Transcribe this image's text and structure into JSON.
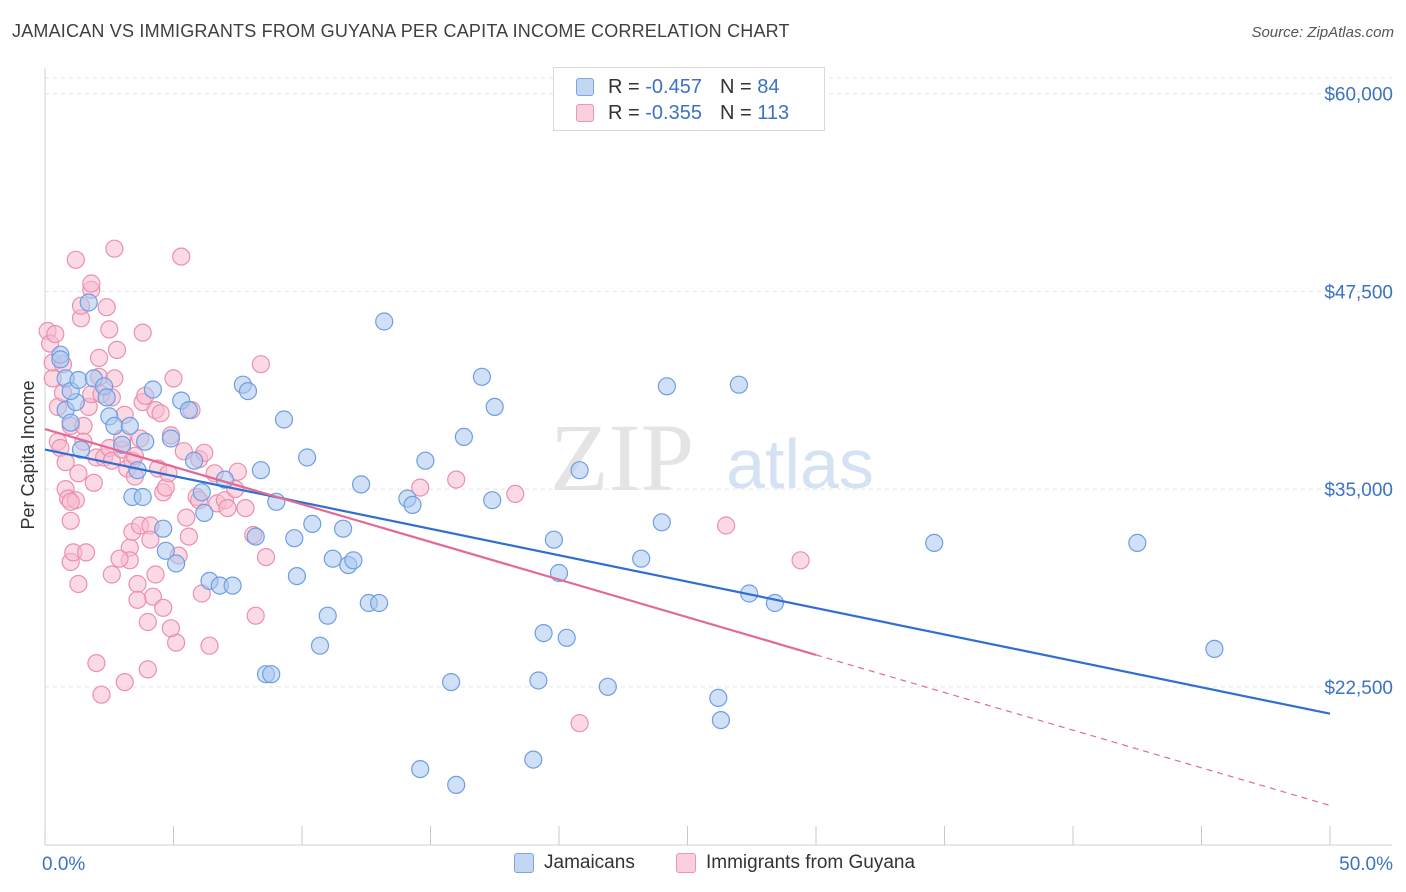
{
  "header": {
    "title": "JAMAICAN VS IMMIGRANTS FROM GUYANA PER CAPITA INCOME CORRELATION CHART",
    "source": "Source: ZipAtlas.com"
  },
  "watermark": {
    "zip": "ZIP",
    "atlas": "atlas"
  },
  "colors": {
    "blue_fill": "#aac8f0",
    "blue_stroke": "#6f9ee0",
    "blue_line": "#2f6fd0",
    "pink_fill": "#f7bcd0",
    "pink_stroke": "#eb8fb0",
    "pink_line": "#e26a95",
    "tick_text": "#3b73c4",
    "grid": "#e3e3e3"
  },
  "legend": {
    "rows": [
      {
        "r_label": "R =",
        "r_value": "-0.457",
        "n_label": "N =",
        "n_value": "84"
      },
      {
        "r_label": "R =",
        "r_value": "-0.355",
        "n_label": "N =",
        "n_value": "113"
      }
    ]
  },
  "bottom_legend": {
    "items": [
      "Jamaicans",
      "Immigrants from Guyana"
    ]
  },
  "chart_data": {
    "type": "scatter",
    "ylabel": "Per Capita Income",
    "xlim": [
      0,
      50
    ],
    "ylim": [
      12500,
      61500
    ],
    "x_tick_labels": [
      "0.0%",
      "50.0%"
    ],
    "y_ticks": [
      22500,
      35000,
      47500,
      60000
    ],
    "y_tick_labels": [
      "$22,500",
      "$35,000",
      "$47,500",
      "$60,000"
    ],
    "grid": true,
    "series": [
      {
        "name": "Jamaicans",
        "r": -0.457,
        "n": 84,
        "trend": {
          "x0": 0,
          "y0": 37500,
          "x1": 50,
          "y1": 20800,
          "dashed_from": null
        },
        "points": [
          [
            0.6,
            43.5
          ],
          [
            0.6,
            43.2
          ],
          [
            0.8,
            42.0
          ],
          [
            0.8,
            40.0
          ],
          [
            1.0,
            39.2
          ],
          [
            1.2,
            40.5
          ],
          [
            1.0,
            41.2
          ],
          [
            1.3,
            41.9
          ],
          [
            1.4,
            37.5
          ],
          [
            1.7,
            46.8
          ],
          [
            1.9,
            42.0
          ],
          [
            2.3,
            41.5
          ],
          [
            2.4,
            40.8
          ],
          [
            2.5,
            39.6
          ],
          [
            2.7,
            39.0
          ],
          [
            3.0,
            37.8
          ],
          [
            3.3,
            39.0
          ],
          [
            3.4,
            34.5
          ],
          [
            3.6,
            36.2
          ],
          [
            3.8,
            34.5
          ],
          [
            3.9,
            38.0
          ],
          [
            4.2,
            41.3
          ],
          [
            4.6,
            32.5
          ],
          [
            4.7,
            31.1
          ],
          [
            4.9,
            38.2
          ],
          [
            5.1,
            30.3
          ],
          [
            5.3,
            40.6
          ],
          [
            5.6,
            40.0
          ],
          [
            5.8,
            36.8
          ],
          [
            6.1,
            34.8
          ],
          [
            6.2,
            33.5
          ],
          [
            6.4,
            29.2
          ],
          [
            6.8,
            28.9
          ],
          [
            7.0,
            35.6
          ],
          [
            7.3,
            28.9
          ],
          [
            7.7,
            41.6
          ],
          [
            7.9,
            41.2
          ],
          [
            8.2,
            32.0
          ],
          [
            8.4,
            36.2
          ],
          [
            8.6,
            23.3
          ],
          [
            8.8,
            23.3
          ],
          [
            9.0,
            34.2
          ],
          [
            9.3,
            39.4
          ],
          [
            9.7,
            31.9
          ],
          [
            9.8,
            29.5
          ],
          [
            10.2,
            37.0
          ],
          [
            10.4,
            32.8
          ],
          [
            10.7,
            25.1
          ],
          [
            11.0,
            27.0
          ],
          [
            11.2,
            30.6
          ],
          [
            11.6,
            32.5
          ],
          [
            11.8,
            30.2
          ],
          [
            12.0,
            30.5
          ],
          [
            12.3,
            35.3
          ],
          [
            12.6,
            27.8
          ],
          [
            13.0,
            27.8
          ],
          [
            13.2,
            45.6
          ],
          [
            14.1,
            34.4
          ],
          [
            14.3,
            34.0
          ],
          [
            14.6,
            17.3
          ],
          [
            14.8,
            36.8
          ],
          [
            15.8,
            22.8
          ],
          [
            16.0,
            16.3
          ],
          [
            16.3,
            38.3
          ],
          [
            17.0,
            42.1
          ],
          [
            17.4,
            34.3
          ],
          [
            17.5,
            40.2
          ],
          [
            19.0,
            17.9
          ],
          [
            19.2,
            22.9
          ],
          [
            19.4,
            25.9
          ],
          [
            19.8,
            31.8
          ],
          [
            20.0,
            29.7
          ],
          [
            20.3,
            25.6
          ],
          [
            20.8,
            36.2
          ],
          [
            21.9,
            22.5
          ],
          [
            23.2,
            30.6
          ],
          [
            24.0,
            32.9
          ],
          [
            24.2,
            41.5
          ],
          [
            26.2,
            21.8
          ],
          [
            26.3,
            20.4
          ],
          [
            27.0,
            41.6
          ],
          [
            27.4,
            28.4
          ],
          [
            28.4,
            27.8
          ],
          [
            34.6,
            31.6
          ],
          [
            42.5,
            31.6
          ],
          [
            45.5,
            24.9
          ]
        ]
      },
      {
        "name": "Immigrants from Guyana",
        "r": -0.355,
        "n": 113,
        "trend": {
          "x0": 0,
          "y0": 38800,
          "x1": 50,
          "y1": 15000,
          "dashed_from": 30
        },
        "points": [
          [
            0.1,
            45.0
          ],
          [
            0.2,
            44.2
          ],
          [
            0.3,
            43.0
          ],
          [
            0.3,
            42.0
          ],
          [
            0.4,
            44.8
          ],
          [
            0.5,
            40.2
          ],
          [
            0.5,
            38.0
          ],
          [
            0.6,
            37.6
          ],
          [
            0.7,
            42.9
          ],
          [
            0.7,
            41.1
          ],
          [
            0.8,
            36.7
          ],
          [
            0.8,
            35.0
          ],
          [
            0.9,
            34.4
          ],
          [
            1.0,
            33.0
          ],
          [
            1.0,
            30.4
          ],
          [
            1.0,
            39.0
          ],
          [
            1.1,
            31.0
          ],
          [
            1.2,
            34.3
          ],
          [
            1.2,
            49.5
          ],
          [
            1.3,
            36.0
          ],
          [
            1.3,
            29.0
          ],
          [
            1.4,
            45.8
          ],
          [
            1.4,
            46.6
          ],
          [
            1.5,
            39.0
          ],
          [
            1.5,
            38.0
          ],
          [
            1.7,
            40.2
          ],
          [
            1.8,
            41.0
          ],
          [
            1.8,
            47.6
          ],
          [
            1.8,
            48.0
          ],
          [
            1.9,
            35.4
          ],
          [
            2.0,
            37.0
          ],
          [
            2.0,
            24.0
          ],
          [
            2.1,
            43.3
          ],
          [
            2.1,
            42.1
          ],
          [
            2.2,
            22.0
          ],
          [
            2.2,
            41.0
          ],
          [
            2.3,
            37.0
          ],
          [
            2.4,
            46.5
          ],
          [
            2.5,
            45.1
          ],
          [
            2.5,
            37.6
          ],
          [
            2.6,
            36.8
          ],
          [
            2.6,
            29.6
          ],
          [
            2.6,
            40.8
          ],
          [
            2.7,
            42.0
          ],
          [
            2.7,
            50.2
          ],
          [
            2.8,
            43.8
          ],
          [
            3.0,
            37.5
          ],
          [
            3.0,
            38.2
          ],
          [
            3.1,
            22.8
          ],
          [
            3.1,
            39.7
          ],
          [
            3.2,
            36.3
          ],
          [
            3.3,
            31.3
          ],
          [
            3.3,
            30.5
          ],
          [
            3.4,
            32.3
          ],
          [
            3.4,
            36.8
          ],
          [
            3.5,
            35.8
          ],
          [
            3.5,
            37.1
          ],
          [
            3.6,
            29.0
          ],
          [
            3.7,
            32.7
          ],
          [
            3.7,
            38.2
          ],
          [
            3.8,
            40.5
          ],
          [
            3.8,
            44.9
          ],
          [
            3.9,
            40.9
          ],
          [
            4.0,
            23.6
          ],
          [
            4.0,
            26.6
          ],
          [
            4.1,
            32.7
          ],
          [
            4.1,
            31.8
          ],
          [
            4.2,
            28.2
          ],
          [
            4.3,
            29.6
          ],
          [
            4.3,
            40.0
          ],
          [
            4.4,
            36.3
          ],
          [
            4.5,
            39.8
          ],
          [
            4.6,
            34.8
          ],
          [
            4.6,
            27.5
          ],
          [
            4.7,
            35.1
          ],
          [
            4.8,
            36.0
          ],
          [
            4.9,
            38.4
          ],
          [
            5.0,
            42.0
          ],
          [
            5.1,
            25.3
          ],
          [
            5.3,
            49.7
          ],
          [
            5.4,
            37.4
          ],
          [
            5.5,
            33.2
          ],
          [
            5.6,
            32.0
          ],
          [
            5.7,
            40.0
          ],
          [
            5.9,
            34.5
          ],
          [
            6.0,
            36.9
          ],
          [
            6.0,
            34.3
          ],
          [
            6.1,
            28.4
          ],
          [
            6.2,
            37.3
          ],
          [
            6.4,
            25.1
          ],
          [
            6.6,
            36.0
          ],
          [
            6.7,
            34.1
          ],
          [
            7.0,
            34.3
          ],
          [
            7.1,
            33.8
          ],
          [
            7.4,
            35.0
          ],
          [
            7.5,
            36.1
          ],
          [
            7.8,
            33.8
          ],
          [
            8.1,
            32.1
          ],
          [
            8.2,
            27.0
          ],
          [
            8.4,
            42.9
          ],
          [
            8.6,
            30.7
          ],
          [
            14.6,
            35.1
          ],
          [
            16.0,
            35.6
          ],
          [
            18.3,
            34.7
          ],
          [
            20.8,
            20.2
          ],
          [
            26.5,
            32.7
          ],
          [
            29.4,
            30.5
          ],
          [
            1.0,
            34.2
          ],
          [
            1.6,
            31.0
          ],
          [
            2.9,
            30.6
          ],
          [
            3.6,
            28.0
          ],
          [
            4.9,
            26.2
          ],
          [
            5.2,
            30.8
          ]
        ]
      }
    ]
  }
}
